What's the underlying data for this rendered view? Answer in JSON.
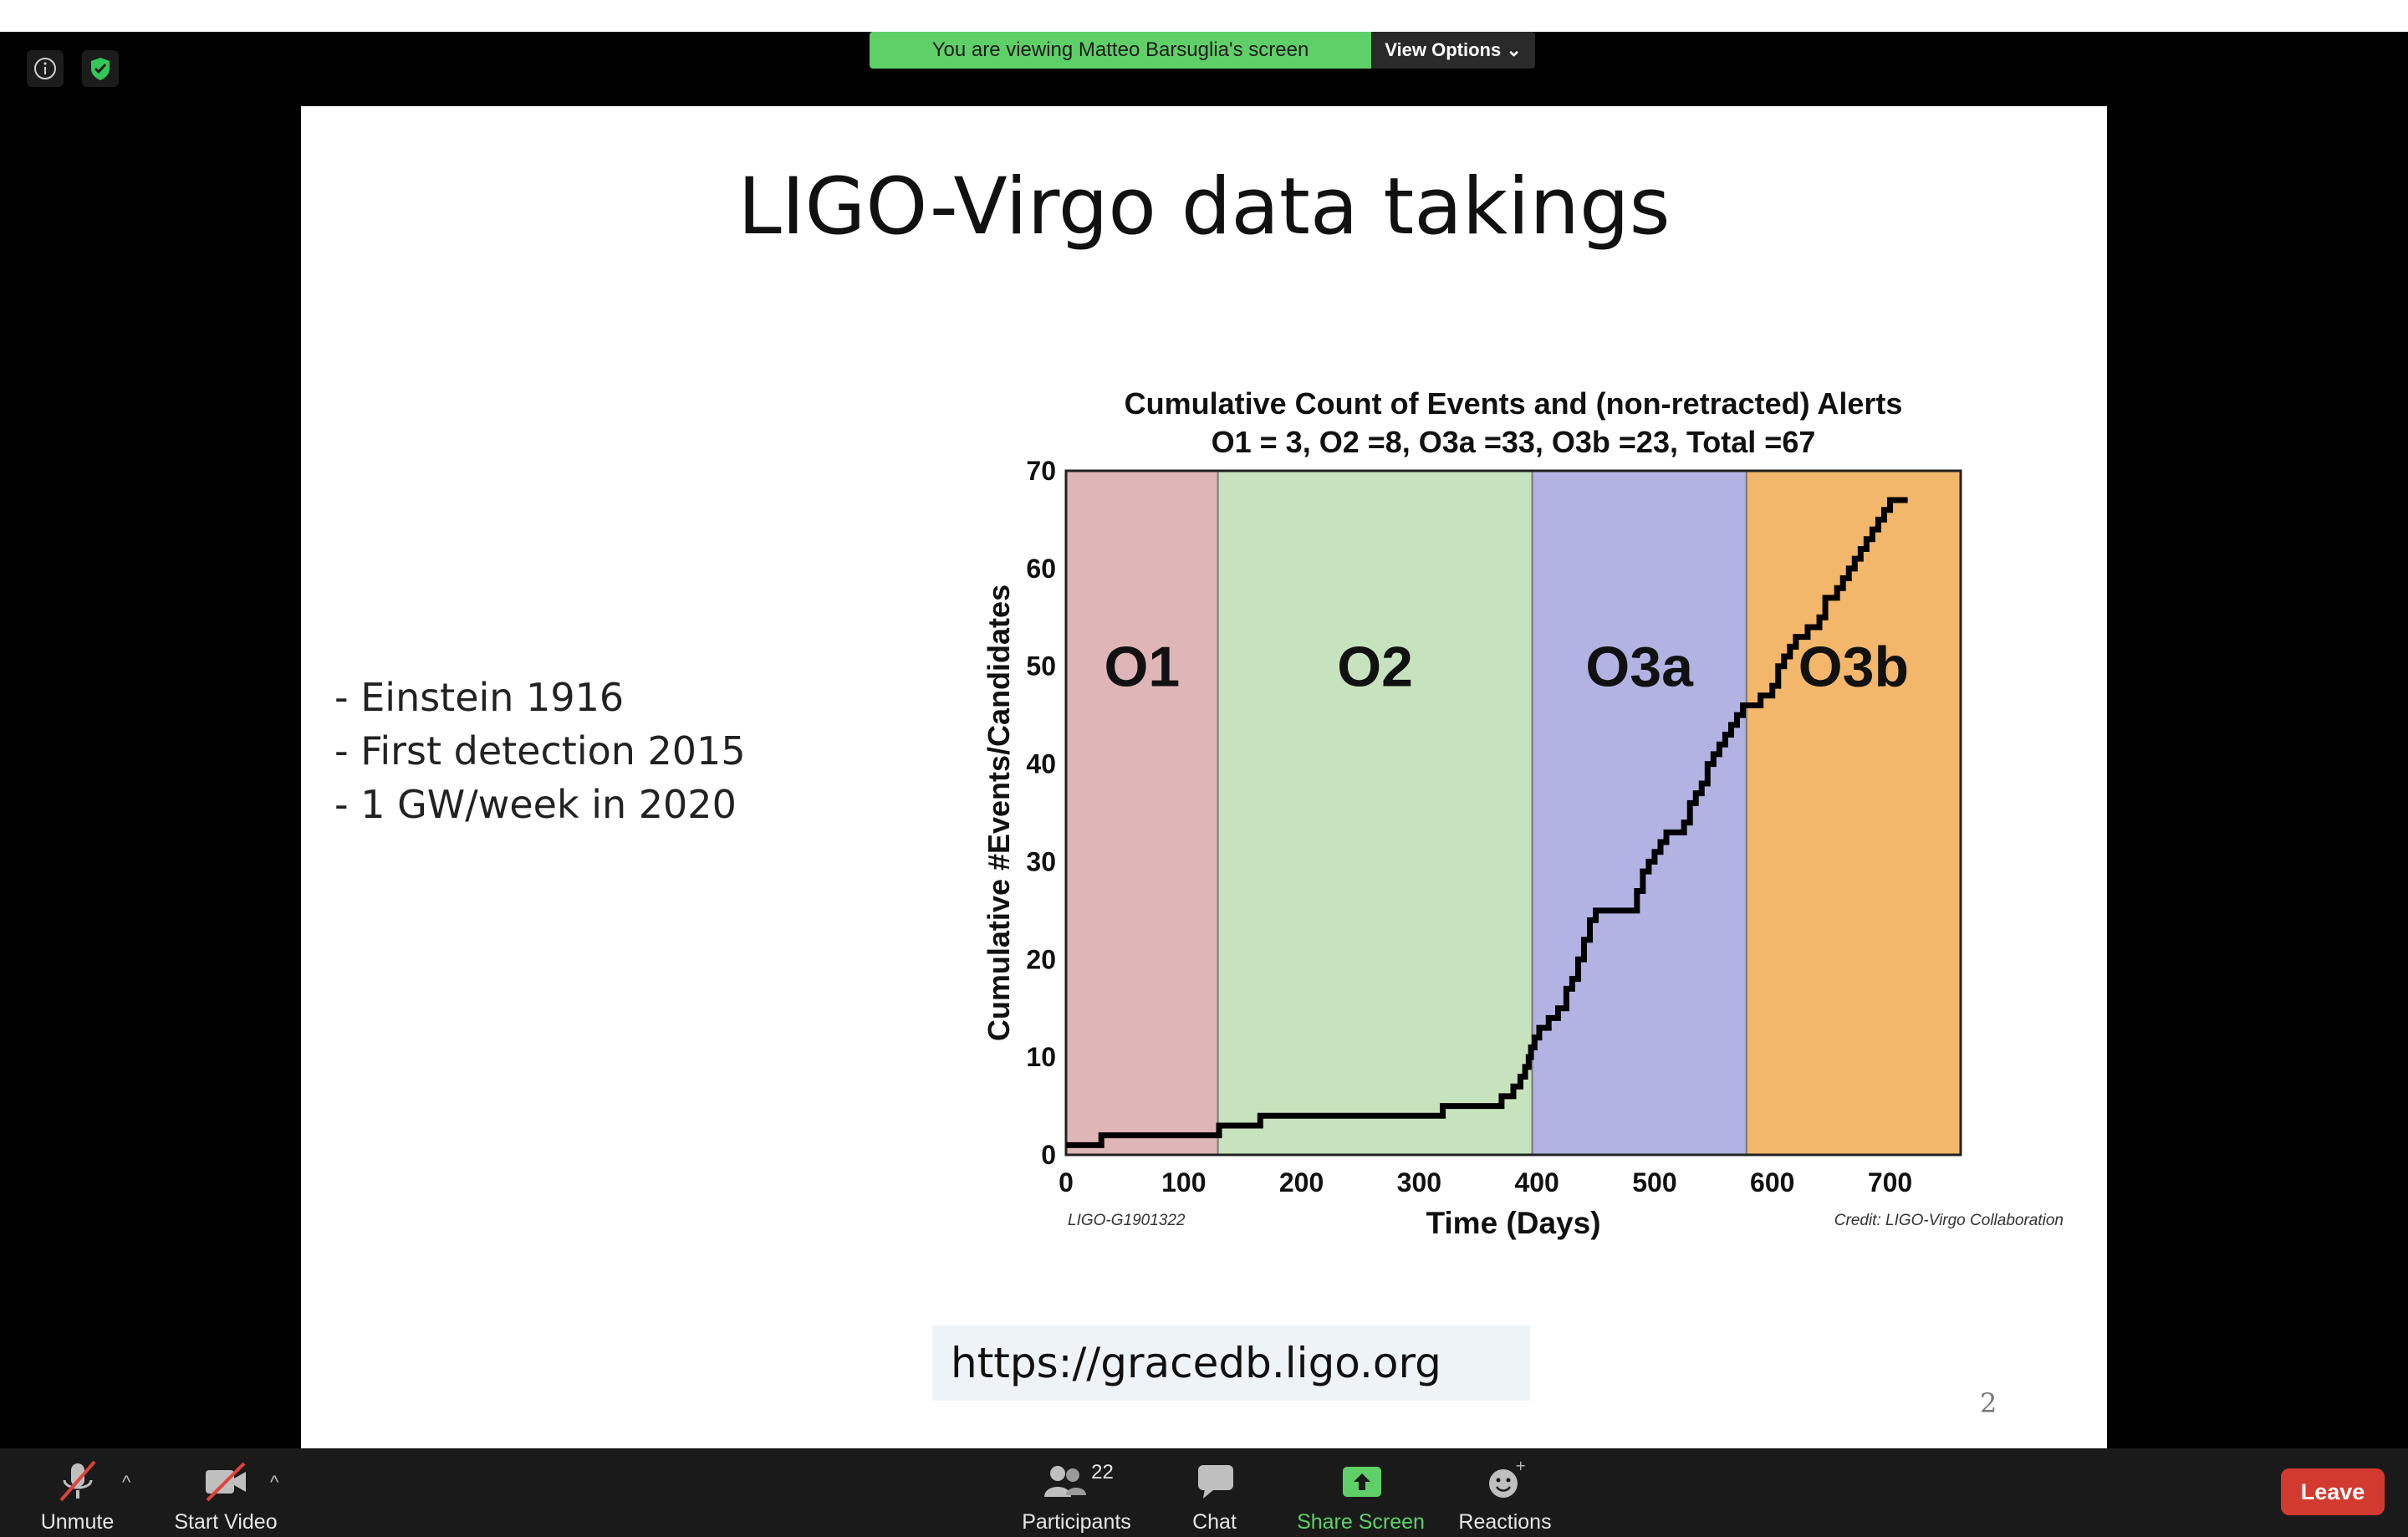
{
  "banner": {
    "message": "You are viewing Matteo Barsuglia's screen",
    "view_options": "View Options"
  },
  "slide": {
    "title": "LIGO-Virgo data takings",
    "bullets": [
      "- Einstein 1916",
      "- First detection 2015",
      "- 1 GW/week in 2020"
    ],
    "url": "https://gracedb.ligo.org",
    "page_number": "2"
  },
  "chart_data": {
    "type": "line",
    "title": "Cumulative Count of Events and (non-retracted) Alerts",
    "subtitle": "O1 = 3, O2 =8, O3a =33, O3b =23, Total =67",
    "xlabel": "Time (Days)",
    "ylabel": "Cumulative #Events/Candidates",
    "xlim": [
      0,
      760
    ],
    "ylim": [
      0,
      70
    ],
    "xticks": [
      0,
      100,
      200,
      300,
      400,
      500,
      600,
      700
    ],
    "yticks": [
      0,
      10,
      20,
      30,
      40,
      50,
      60,
      70
    ],
    "regions": [
      {
        "name": "O1",
        "start": 0,
        "end": 129,
        "color": "#e0b5b8"
      },
      {
        "name": "O2",
        "start": 129,
        "end": 396,
        "color": "#c6e3bd"
      },
      {
        "name": "O3a",
        "start": 396,
        "end": 578,
        "color": "#b3b3e3"
      },
      {
        "name": "O3b",
        "start": 578,
        "end": 760,
        "color": "#f2b76a"
      }
    ],
    "x": [
      0,
      30,
      130,
      165,
      320,
      370,
      380,
      386,
      390,
      393,
      395,
      398,
      402,
      410,
      418,
      425,
      430,
      435,
      440,
      445,
      450,
      455,
      460,
      468,
      485,
      490,
      495,
      500,
      505,
      510,
      520,
      525,
      530,
      535,
      540,
      545,
      550,
      555,
      560,
      565,
      570,
      575,
      578,
      582,
      590,
      600,
      605,
      610,
      615,
      620,
      630,
      640,
      645,
      650,
      655,
      660,
      665,
      670,
      675,
      680,
      685,
      690,
      695,
      700,
      705,
      710,
      715
    ],
    "y": [
      1,
      2,
      3,
      4,
      5,
      6,
      7,
      8,
      9,
      10,
      11,
      12,
      13,
      14,
      15,
      17,
      18,
      20,
      22,
      24,
      25,
      25,
      25,
      25,
      27,
      29,
      30,
      31,
      32,
      33,
      33,
      34,
      36,
      37,
      38,
      40,
      41,
      42,
      43,
      44,
      45,
      46,
      46,
      46,
      47,
      48,
      50,
      51,
      52,
      53,
      54,
      55,
      57,
      57,
      58,
      59,
      60,
      61,
      62,
      63,
      64,
      65,
      66,
      67,
      67,
      67,
      67
    ],
    "footer_left": "LIGO-G1901322",
    "footer_right": "Credit: LIGO-Virgo Collaboration"
  },
  "toolbar": {
    "unmute": "Unmute",
    "start_video": "Start Video",
    "participants": "Participants",
    "participants_count": "22",
    "chat": "Chat",
    "share_screen": "Share Screen",
    "reactions": "Reactions",
    "leave": "Leave"
  },
  "colors": {
    "banner_green": "#5fd068",
    "share_green": "#5fd068",
    "leave_red": "#d23a2f"
  },
  "icons": [
    "info-icon",
    "shield-check-icon",
    "muted-mic-icon",
    "video-off-icon",
    "participants-icon",
    "chat-icon",
    "share-screen-icon",
    "reactions-icon"
  ]
}
